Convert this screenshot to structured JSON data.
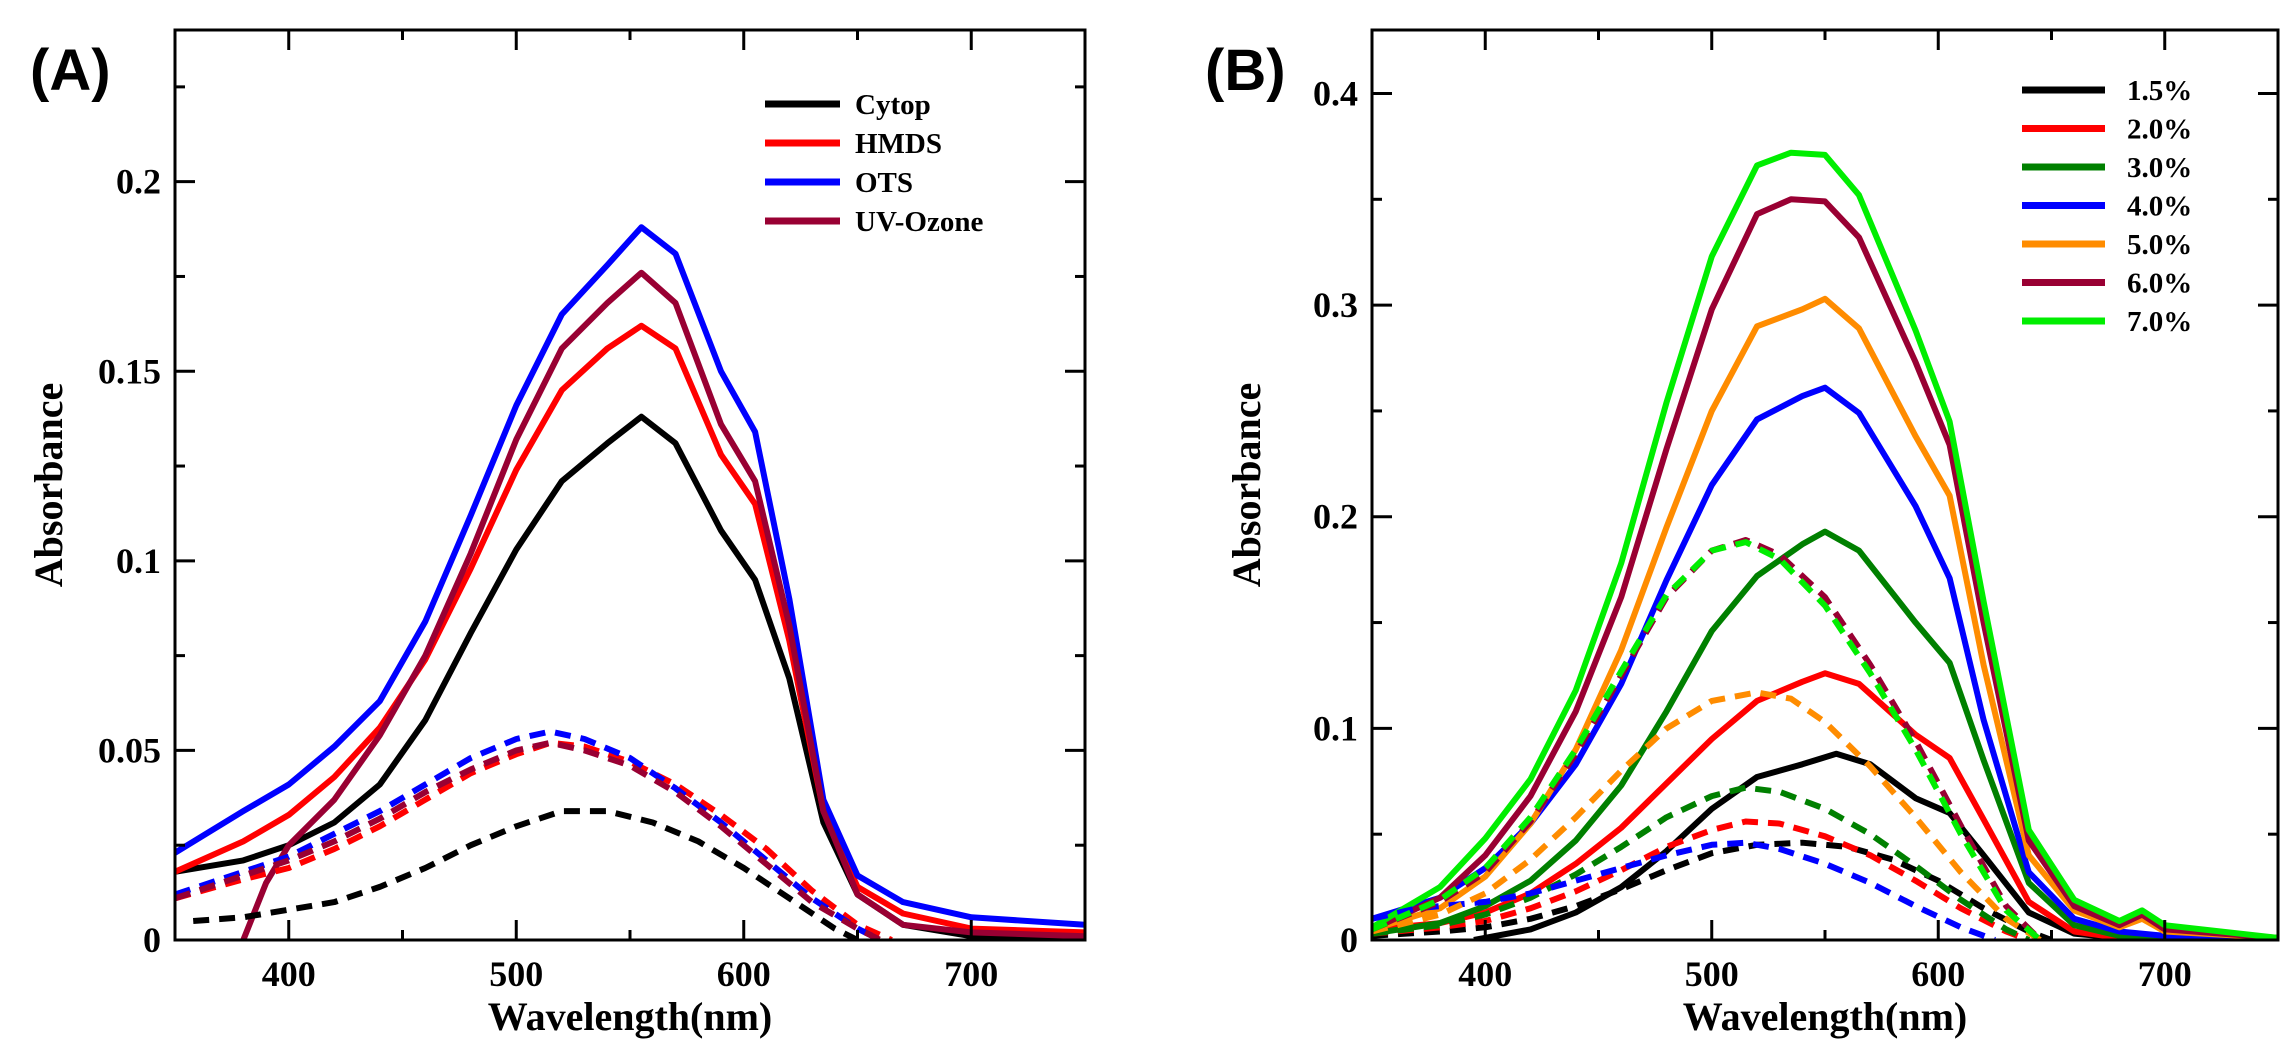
{
  "chart_data": [
    {
      "panel_label": "(A)",
      "type": "line",
      "title": "",
      "xlabel": "Wavelength(nm)",
      "ylabel": "Absorbance",
      "xlim": [
        350,
        750
      ],
      "ylim": [
        0,
        0.24
      ],
      "x_ticks": [
        400,
        500,
        600,
        700
      ],
      "x_tick_labels": [
        "400",
        "500",
        "600",
        "700"
      ],
      "y_ticks": [
        0,
        0.05,
        0.1,
        0.15,
        0.2
      ],
      "y_tick_labels": [
        "0",
        "0.05",
        "0.1",
        "0.15",
        "0.2"
      ],
      "grid": false,
      "legend_position": "top-right",
      "legend": [
        "Cytop",
        "HMDS",
        "OTS",
        "UV-Ozone"
      ],
      "series": [
        {
          "name": "Cytop",
          "color": "#000000",
          "style": "solid",
          "x": [
            350,
            380,
            400,
            420,
            440,
            460,
            480,
            500,
            520,
            540,
            555,
            570,
            590,
            605,
            620,
            635,
            650,
            670,
            700,
            750
          ],
          "y": [
            0.018,
            0.021,
            0.025,
            0.031,
            0.041,
            0.058,
            0.081,
            0.103,
            0.121,
            0.131,
            0.138,
            0.131,
            0.108,
            0.095,
            0.069,
            0.031,
            0.012,
            0.004,
            0.001,
            0.0
          ]
        },
        {
          "name": "HMDS",
          "color": "#ff0000",
          "style": "solid",
          "x": [
            350,
            380,
            400,
            420,
            440,
            460,
            480,
            500,
            520,
            540,
            555,
            570,
            590,
            605,
            620,
            635,
            650,
            670,
            700,
            750
          ],
          "y": [
            0.018,
            0.026,
            0.033,
            0.043,
            0.056,
            0.074,
            0.098,
            0.124,
            0.145,
            0.156,
            0.162,
            0.156,
            0.128,
            0.115,
            0.079,
            0.034,
            0.014,
            0.007,
            0.003,
            0.002
          ]
        },
        {
          "name": "OTS",
          "color": "#0000ff",
          "style": "solid",
          "x": [
            350,
            380,
            400,
            420,
            440,
            460,
            480,
            500,
            520,
            540,
            555,
            570,
            590,
            605,
            620,
            635,
            650,
            670,
            700,
            750
          ],
          "y": [
            0.023,
            0.034,
            0.041,
            0.051,
            0.063,
            0.084,
            0.112,
            0.141,
            0.165,
            0.178,
            0.188,
            0.181,
            0.15,
            0.134,
            0.09,
            0.037,
            0.017,
            0.01,
            0.006,
            0.004
          ]
        },
        {
          "name": "UV-Ozone",
          "color": "#990033",
          "style": "solid",
          "x": [
            380,
            390,
            400,
            420,
            440,
            460,
            480,
            500,
            520,
            540,
            555,
            570,
            590,
            605,
            620,
            635,
            650,
            670,
            700,
            750
          ],
          "y": [
            0.0,
            0.015,
            0.025,
            0.037,
            0.054,
            0.075,
            0.102,
            0.132,
            0.156,
            0.168,
            0.176,
            0.168,
            0.136,
            0.121,
            0.083,
            0.034,
            0.012,
            0.004,
            0.002,
            0.001
          ]
        },
        {
          "name": "Cytop (dashed)",
          "color": "#000000",
          "style": "dashed",
          "x": [
            358,
            380,
            400,
            420,
            440,
            460,
            480,
            500,
            520,
            540,
            560,
            580,
            600,
            620,
            640,
            650
          ],
          "y": [
            0.005,
            0.006,
            0.008,
            0.01,
            0.014,
            0.019,
            0.025,
            0.03,
            0.034,
            0.034,
            0.031,
            0.026,
            0.019,
            0.011,
            0.003,
            0.0
          ]
        },
        {
          "name": "HMDS (dashed)",
          "color": "#ff0000",
          "style": "dashed",
          "x": [
            350,
            380,
            400,
            420,
            440,
            460,
            480,
            500,
            515,
            530,
            550,
            570,
            590,
            610,
            630,
            650,
            665
          ],
          "y": [
            0.011,
            0.016,
            0.019,
            0.024,
            0.03,
            0.037,
            0.044,
            0.049,
            0.052,
            0.051,
            0.047,
            0.041,
            0.033,
            0.024,
            0.013,
            0.004,
            0.0
          ]
        },
        {
          "name": "OTS (dashed)",
          "color": "#0000ff",
          "style": "dashed",
          "x": [
            350,
            380,
            400,
            420,
            440,
            460,
            480,
            500,
            515,
            530,
            550,
            570,
            590,
            610,
            630,
            650,
            660
          ],
          "y": [
            0.012,
            0.018,
            0.022,
            0.028,
            0.034,
            0.041,
            0.048,
            0.053,
            0.055,
            0.053,
            0.048,
            0.04,
            0.031,
            0.021,
            0.011,
            0.003,
            0.0
          ]
        },
        {
          "name": "UV-Ozone (dashed)",
          "color": "#990033",
          "style": "dashed",
          "x": [
            350,
            380,
            400,
            420,
            440,
            460,
            480,
            500,
            515,
            530,
            550,
            570,
            590,
            610,
            630,
            650,
            660
          ],
          "y": [
            0.011,
            0.017,
            0.021,
            0.026,
            0.032,
            0.039,
            0.045,
            0.05,
            0.052,
            0.05,
            0.046,
            0.039,
            0.03,
            0.02,
            0.01,
            0.003,
            0.0
          ]
        }
      ]
    },
    {
      "panel_label": "(B)",
      "type": "line",
      "title": "",
      "xlabel": "Wavelength(nm)",
      "ylabel": "Absorbance",
      "xlim": [
        350,
        750
      ],
      "ylim": [
        0,
        0.43
      ],
      "x_ticks": [
        400,
        500,
        600,
        700
      ],
      "x_tick_labels": [
        "400",
        "500",
        "600",
        "700"
      ],
      "y_ticks": [
        0,
        0.1,
        0.2,
        0.3,
        0.4
      ],
      "y_tick_labels": [
        "0",
        "0.1",
        "0.2",
        "0.3",
        "0.4"
      ],
      "grid": false,
      "legend_position": "top-right",
      "legend": [
        "1.5%",
        "2.0%",
        "3.0%",
        "4.0%",
        "5.0%",
        "6.0%",
        "7.0%"
      ],
      "series": [
        {
          "name": "1.5%",
          "color": "#000000",
          "style": "solid",
          "x": [
            395,
            420,
            440,
            460,
            480,
            500,
            520,
            540,
            555,
            570,
            590,
            605,
            620,
            640,
            660,
            680,
            700,
            750
          ],
          "y": [
            0.0,
            0.005,
            0.013,
            0.025,
            0.042,
            0.062,
            0.077,
            0.083,
            0.088,
            0.083,
            0.067,
            0.06,
            0.04,
            0.013,
            0.003,
            0.001,
            0.0,
            0.0
          ]
        },
        {
          "name": "2.0%",
          "color": "#ff0000",
          "style": "solid",
          "x": [
            350,
            380,
            400,
            420,
            440,
            460,
            480,
            500,
            520,
            540,
            550,
            565,
            590,
            605,
            620,
            640,
            660,
            680,
            700,
            750
          ],
          "y": [
            0.005,
            0.008,
            0.013,
            0.022,
            0.036,
            0.053,
            0.074,
            0.095,
            0.113,
            0.122,
            0.126,
            0.121,
            0.097,
            0.086,
            0.057,
            0.018,
            0.004,
            0.001,
            0.0,
            0.0
          ]
        },
        {
          "name": "3.0%",
          "color": "#008000",
          "style": "solid",
          "x": [
            350,
            380,
            400,
            420,
            440,
            460,
            480,
            500,
            520,
            540,
            550,
            565,
            590,
            605,
            620,
            640,
            660,
            680,
            700,
            750
          ],
          "y": [
            0.003,
            0.008,
            0.016,
            0.028,
            0.047,
            0.073,
            0.108,
            0.146,
            0.172,
            0.187,
            0.193,
            0.184,
            0.15,
            0.131,
            0.085,
            0.027,
            0.007,
            0.002,
            0.001,
            0.0
          ]
        },
        {
          "name": "4.0%",
          "color": "#0000ff",
          "style": "solid",
          "x": [
            350,
            380,
            400,
            420,
            440,
            460,
            480,
            500,
            520,
            540,
            550,
            565,
            590,
            605,
            620,
            640,
            660,
            680,
            700,
            750
          ],
          "y": [
            0.01,
            0.02,
            0.034,
            0.055,
            0.083,
            0.121,
            0.17,
            0.215,
            0.246,
            0.257,
            0.261,
            0.249,
            0.205,
            0.171,
            0.104,
            0.032,
            0.01,
            0.004,
            0.002,
            0.001
          ]
        },
        {
          "name": "5.0%",
          "color": "#ff8c00",
          "style": "solid",
          "x": [
            350,
            380,
            400,
            420,
            440,
            460,
            480,
            500,
            520,
            540,
            550,
            565,
            590,
            605,
            620,
            640,
            660,
            680,
            690,
            700,
            750
          ],
          "y": [
            0.005,
            0.015,
            0.03,
            0.055,
            0.09,
            0.137,
            0.195,
            0.25,
            0.29,
            0.298,
            0.303,
            0.289,
            0.238,
            0.21,
            0.13,
            0.04,
            0.014,
            0.006,
            0.01,
            0.004,
            0.001
          ]
        },
        {
          "name": "6.0%",
          "color": "#990033",
          "style": "solid",
          "x": [
            350,
            380,
            400,
            420,
            440,
            460,
            480,
            500,
            520,
            535,
            550,
            565,
            590,
            605,
            620,
            640,
            660,
            680,
            690,
            700,
            750
          ],
          "y": [
            0.005,
            0.02,
            0.04,
            0.068,
            0.108,
            0.162,
            0.232,
            0.298,
            0.343,
            0.35,
            0.349,
            0.332,
            0.273,
            0.234,
            0.15,
            0.047,
            0.016,
            0.007,
            0.012,
            0.005,
            0.001
          ]
        },
        {
          "name": "7.0%",
          "color": "#00ee00",
          "style": "solid",
          "x": [
            350,
            380,
            400,
            420,
            440,
            460,
            480,
            500,
            520,
            535,
            550,
            565,
            590,
            605,
            620,
            640,
            660,
            680,
            690,
            700,
            750
          ],
          "y": [
            0.006,
            0.025,
            0.048,
            0.076,
            0.118,
            0.178,
            0.254,
            0.323,
            0.366,
            0.372,
            0.371,
            0.352,
            0.288,
            0.245,
            0.16,
            0.052,
            0.019,
            0.009,
            0.014,
            0.007,
            0.001
          ]
        },
        {
          "name": "1.5% (dashed)",
          "color": "#000000",
          "style": "dashed",
          "x": [
            350,
            380,
            400,
            420,
            440,
            460,
            480,
            500,
            520,
            540,
            560,
            580,
            600,
            620,
            640,
            650
          ],
          "y": [
            0.002,
            0.004,
            0.006,
            0.01,
            0.016,
            0.024,
            0.033,
            0.041,
            0.045,
            0.046,
            0.044,
            0.038,
            0.028,
            0.015,
            0.004,
            0.0
          ]
        },
        {
          "name": "2.0% (dashed)",
          "color": "#ff0000",
          "style": "dashed",
          "x": [
            350,
            380,
            400,
            420,
            440,
            460,
            480,
            500,
            515,
            530,
            550,
            570,
            590,
            610,
            630,
            640
          ],
          "y": [
            0.003,
            0.006,
            0.009,
            0.015,
            0.023,
            0.033,
            0.044,
            0.052,
            0.056,
            0.055,
            0.049,
            0.04,
            0.028,
            0.015,
            0.004,
            0.0
          ]
        },
        {
          "name": "3.0% (dashed)",
          "color": "#008000",
          "style": "dashed",
          "x": [
            350,
            380,
            400,
            420,
            440,
            460,
            480,
            500,
            515,
            530,
            550,
            570,
            590,
            610,
            630,
            640
          ],
          "y": [
            0.003,
            0.007,
            0.012,
            0.02,
            0.031,
            0.044,
            0.058,
            0.068,
            0.072,
            0.07,
            0.062,
            0.05,
            0.035,
            0.019,
            0.005,
            0.0
          ]
        },
        {
          "name": "4.0% (dashed)",
          "color": "#0000ff",
          "style": "dashed",
          "x": [
            350,
            370,
            400,
            420,
            440,
            460,
            480,
            500,
            515,
            530,
            550,
            570,
            590,
            610,
            625
          ],
          "y": [
            0.01,
            0.015,
            0.018,
            0.022,
            0.028,
            0.034,
            0.04,
            0.045,
            0.046,
            0.043,
            0.036,
            0.027,
            0.016,
            0.006,
            0.0
          ]
        },
        {
          "name": "5.0% (dashed)",
          "color": "#ff8c00",
          "style": "dashed",
          "x": [
            350,
            380,
            400,
            420,
            440,
            460,
            480,
            500,
            520,
            535,
            550,
            570,
            590,
            610,
            630,
            645
          ],
          "y": [
            0.004,
            0.012,
            0.022,
            0.038,
            0.058,
            0.08,
            0.1,
            0.113,
            0.117,
            0.114,
            0.103,
            0.082,
            0.058,
            0.032,
            0.01,
            0.0
          ]
        },
        {
          "name": "6.0% (dashed)",
          "color": "#990033",
          "style": "dashed",
          "x": [
            350,
            380,
            400,
            420,
            440,
            460,
            480,
            500,
            515,
            530,
            550,
            570,
            590,
            610,
            630,
            645
          ],
          "y": [
            0.005,
            0.018,
            0.032,
            0.056,
            0.088,
            0.125,
            0.162,
            0.184,
            0.189,
            0.182,
            0.162,
            0.13,
            0.094,
            0.054,
            0.016,
            0.0
          ]
        },
        {
          "name": "7.0% (dashed)",
          "color": "#00ee00",
          "style": "dashed",
          "x": [
            350,
            380,
            400,
            420,
            440,
            460,
            480,
            500,
            515,
            530,
            550,
            570,
            590,
            610,
            630,
            645
          ],
          "y": [
            0.005,
            0.019,
            0.034,
            0.058,
            0.09,
            0.127,
            0.163,
            0.184,
            0.188,
            0.18,
            0.158,
            0.126,
            0.09,
            0.05,
            0.014,
            0.0
          ]
        }
      ]
    }
  ]
}
